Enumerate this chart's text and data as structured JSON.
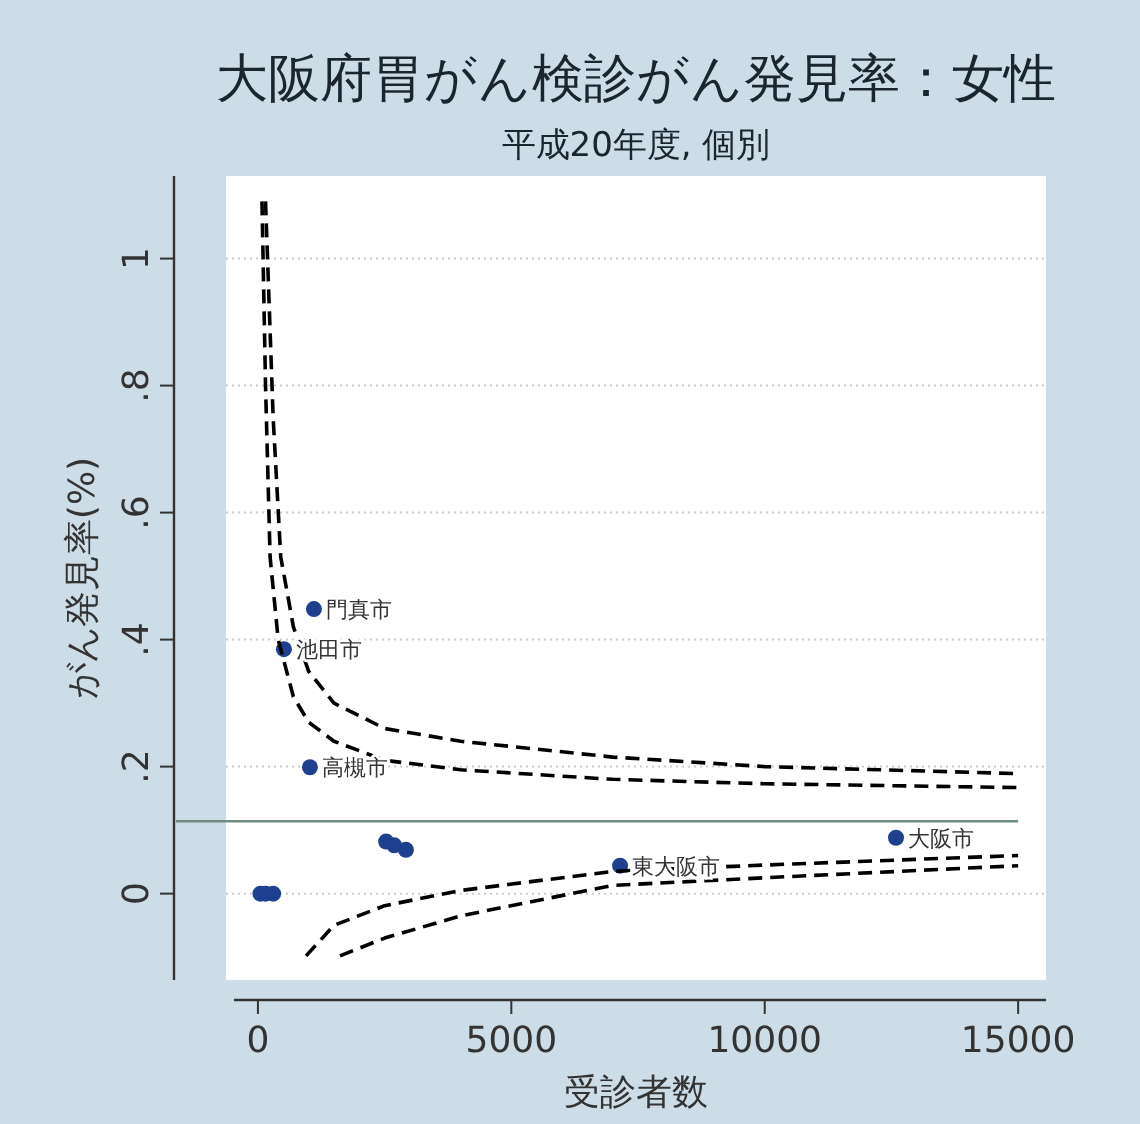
{
  "chart_data": {
    "type": "scatter",
    "title": "大阪府胃がん検診がん発見率：女性",
    "subtitle": "平成20年度, 個別",
    "xlabel": "受診者数",
    "ylabel": "がん発見率(%)",
    "xlim": [
      -630,
      15550
    ],
    "ylim": [
      -0.136,
      1.13
    ],
    "xticks": [
      0,
      5000,
      10000,
      15000
    ],
    "yticks": [
      0,
      {
        "value": 0.2,
        "label": ".2"
      },
      {
        "value": 0.4,
        "label": ".4"
      },
      {
        "value": 0.6,
        "label": ".6"
      },
      {
        "value": 0.8,
        "label": ".8"
      },
      1
    ],
    "grid": "y",
    "series": [
      {
        "type": "scatter",
        "color": "#1f3f8f",
        "marker": "circle",
        "x": [
          1105,
          513,
          1026,
          2530,
          2690,
          2920,
          50,
          150,
          300,
          7146,
          12590
        ],
        "values": [
          0.448,
          0.385,
          0.199,
          0.082,
          0.076,
          0.069,
          0,
          0,
          0,
          0.044,
          0.088
        ]
      },
      {
        "type": "line",
        "color": "#000000",
        "line_style": "dashed",
        "x": [
          150,
          300,
          450,
          700,
          1000,
          1500,
          2500,
          4000,
          7000,
          10000,
          15000
        ],
        "values": [
          1.09,
          0.75,
          0.53,
          0.42,
          0.35,
          0.3,
          0.26,
          0.24,
          0.215,
          0.2,
          0.189
        ]
      },
      {
        "type": "line",
        "color": "#000000",
        "line_style": "dashed",
        "x": [
          80,
          150,
          240,
          400,
          700,
          1000,
          1500,
          2500,
          4000,
          7000,
          10000,
          15000
        ],
        "values": [
          1.09,
          0.8,
          0.53,
          0.4,
          0.31,
          0.27,
          0.24,
          0.21,
          0.195,
          0.18,
          0.173,
          0.167
        ]
      },
      {
        "type": "line",
        "color": "#000000",
        "line_style": "dashed",
        "x": [
          950,
          1500,
          2500,
          4000,
          7000,
          10000,
          15000
        ],
        "values": [
          -0.098,
          -0.05,
          -0.019,
          0.005,
          0.035,
          0.045,
          0.06
        ]
      },
      {
        "type": "line",
        "color": "#000000",
        "line_style": "dashed",
        "x": [
          1620,
          2500,
          4000,
          7000,
          10000,
          15000
        ],
        "values": [
          -0.098,
          -0.07,
          -0.035,
          0.013,
          0.025,
          0.044
        ]
      }
    ],
    "ref_lines": [
      {
        "axis": "y",
        "value": 0.114,
        "color": "#6f8a80",
        "line_style": "solid"
      }
    ],
    "annotations": [
      {
        "text": "門真市",
        "x": 1105,
        "y": 0.448
      },
      {
        "text": "池田市",
        "x": 513,
        "y": 0.385
      },
      {
        "text": "高槻市",
        "x": 1026,
        "y": 0.199
      },
      {
        "text": "東大阪市",
        "x": 7146,
        "y": 0.044
      },
      {
        "text": "大阪市",
        "x": 12590,
        "y": 0.088
      }
    ]
  }
}
